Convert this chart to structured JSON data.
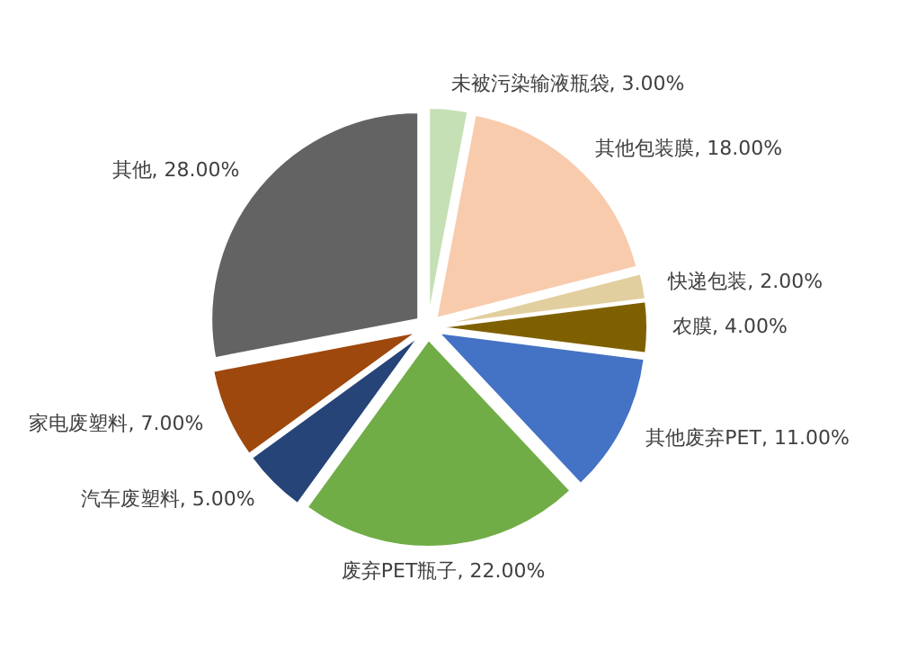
{
  "chart_data": {
    "type": "pie",
    "categories": [
      "未被污染输液瓶袋",
      "其他包装膜",
      "快递包装",
      "农膜",
      "其他废弃PET",
      "废弃PET瓶子",
      "汽车废塑料",
      "家电废塑料",
      "其他"
    ],
    "values": [
      3,
      18,
      2,
      4,
      11,
      22,
      5,
      7,
      28
    ],
    "value_labels": [
      "3.00%",
      "18.00%",
      "2.00%",
      "4.00%",
      "11.00%",
      "22.00%",
      "5.00%",
      "7.00%",
      "28.00%"
    ],
    "colors": [
      "#c5e0b4",
      "#f8cbad",
      "#e2cf9f",
      "#7f6000",
      "#4472c4",
      "#70ad47",
      "#264478",
      "#9e480e",
      "#636363"
    ]
  }
}
